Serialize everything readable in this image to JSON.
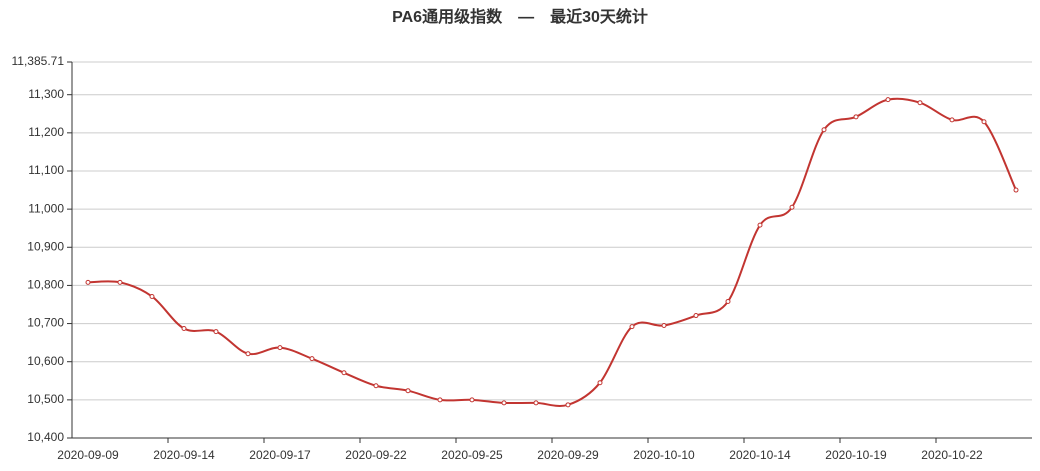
{
  "chart_data": {
    "type": "line",
    "title": "PA6通用级指数　—　最近30天统计",
    "categories": [
      "2020-09-09",
      null,
      null,
      "2020-09-14",
      null,
      null,
      "2020-09-17",
      null,
      null,
      "2020-09-22",
      null,
      null,
      "2020-09-25",
      null,
      null,
      "2020-09-29",
      null,
      null,
      "2020-10-10",
      null,
      null,
      "2020-10-14",
      null,
      null,
      "2020-10-19",
      null,
      null,
      "2020-10-22",
      null,
      null
    ],
    "series": [
      {
        "color": "#c23531",
        "values": [
          10808,
          10808,
          10771,
          10687,
          10679,
          10621,
          10637,
          10608,
          10571,
          10537,
          10524,
          10500,
          10500,
          10492,
          10492,
          10487,
          10545,
          10692,
          10695,
          10721,
          10758,
          10958,
          11005,
          11208,
          11242,
          11287,
          11279,
          11234,
          11229,
          11050
        ]
      }
    ],
    "ylim": [
      10400,
      11385.71
    ],
    "yticks": [
      {
        "value": 10400,
        "label": "10,400"
      },
      {
        "value": 10500,
        "label": "10,500"
      },
      {
        "value": 10600,
        "label": "10,600"
      },
      {
        "value": 10700,
        "label": "10,700"
      },
      {
        "value": 10800,
        "label": "10,800"
      },
      {
        "value": 10900,
        "label": "10,900"
      },
      {
        "value": 11000,
        "label": "11,000"
      },
      {
        "value": 11100,
        "label": "11,100"
      },
      {
        "value": 11200,
        "label": "11,200"
      },
      {
        "value": 11300,
        "label": "11,300"
      },
      {
        "value": 11385.71,
        "label": "11,385.71"
      }
    ],
    "grid": true,
    "smooth": true
  }
}
